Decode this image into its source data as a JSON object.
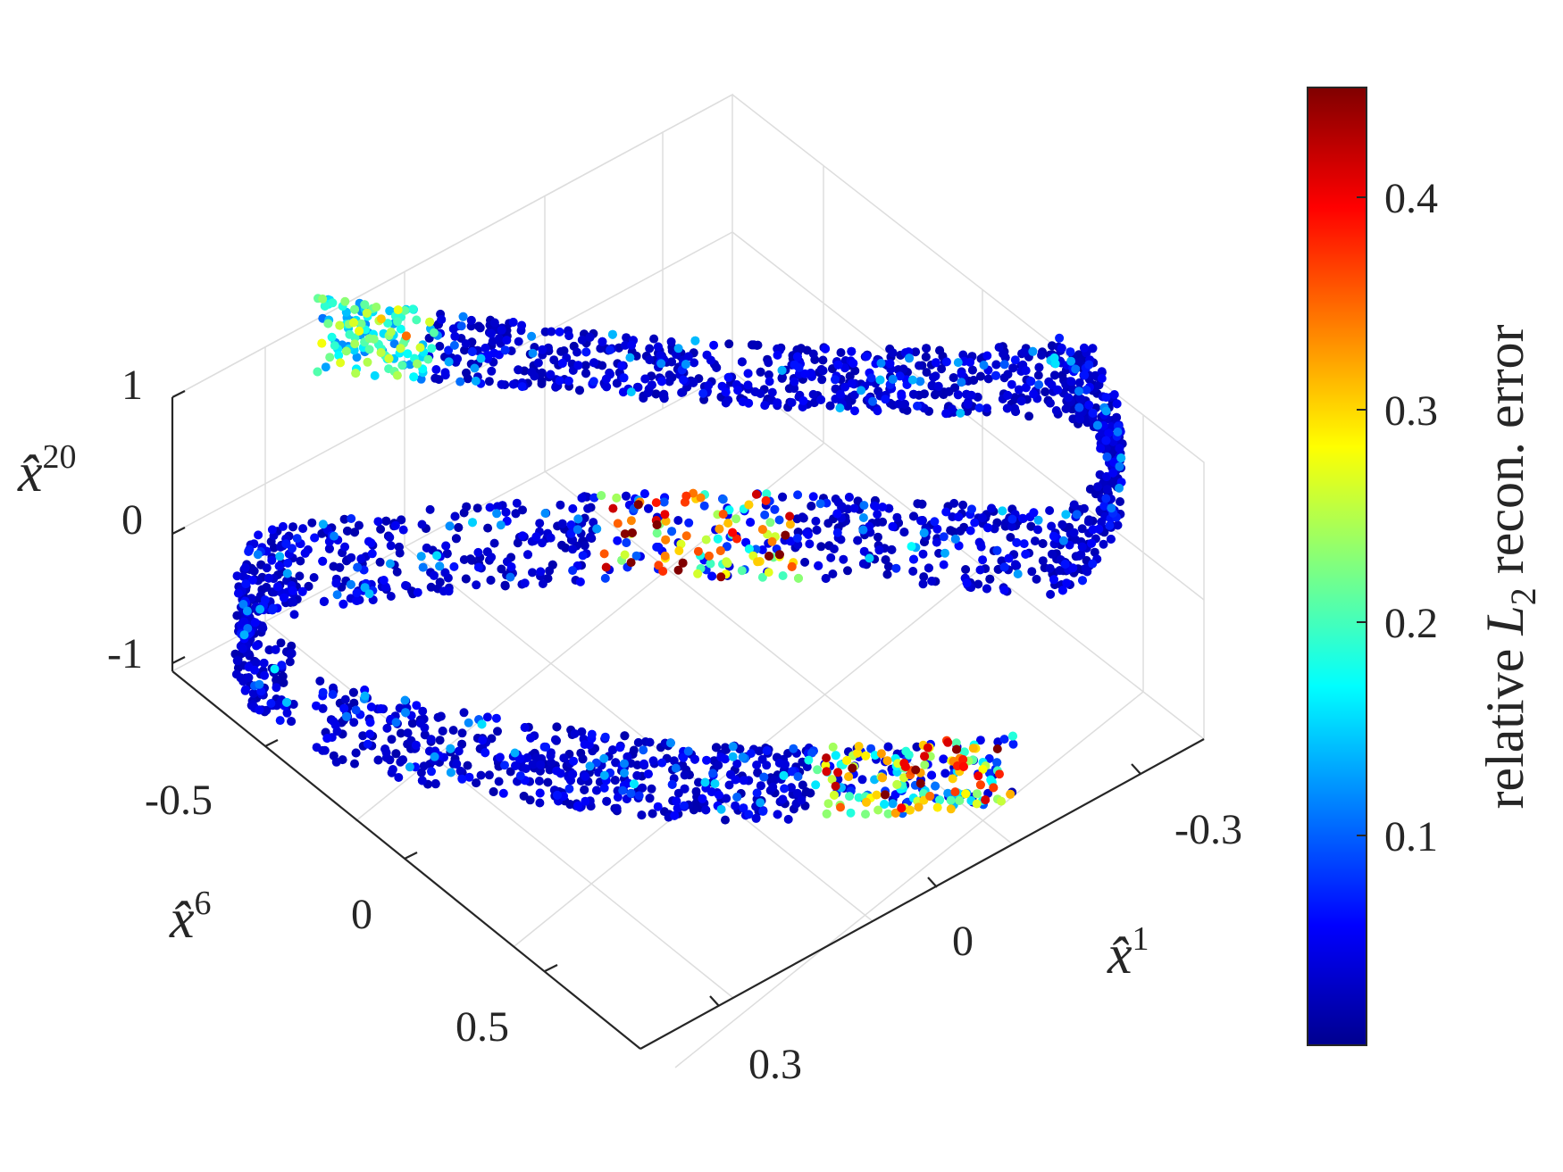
{
  "chart_data": {
    "type": "scatter",
    "subtype": "3d-scatter-colored",
    "title": "",
    "axes": {
      "x": {
        "label_base": "x̂",
        "label_sup": "1",
        "ticks": [
          "0.3",
          "0",
          "-0.3"
        ],
        "lim": [
          0.4,
          -0.4
        ]
      },
      "y": {
        "label_base": "x̂",
        "label_sup": "6",
        "ticks": [
          "-0.5",
          "0",
          "0.5"
        ],
        "lim": [
          -0.8,
          0.8
        ]
      },
      "z": {
        "label_base": "x̂",
        "label_sup": "20",
        "ticks": [
          "1",
          "0",
          "-1"
        ],
        "lim": [
          -1.1,
          1.1
        ]
      }
    },
    "grid": true,
    "colormap": "jet",
    "colorbar": {
      "ticks": [
        "0.1",
        "0.2",
        "0.3",
        "0.4"
      ],
      "range": [
        0.0,
        0.45
      ],
      "label_pre": "relative ",
      "label_var": "L",
      "label_sub": "2",
      "label_post": " recon. error"
    },
    "points_description": "approximately 4000 points lying on a helical ribbon (about 1.5 turns) in the (x1, x6, x20) space; most errors 0.0-0.1, with higher errors (0.2-0.45) clustered near the middle of the middle band and at both ends of the ribbon",
    "high_error_clusters": [
      {
        "location": "upper band, left end",
        "error_range": [
          0.15,
          0.3
        ]
      },
      {
        "location": "middle band, center",
        "error_range": [
          0.3,
          0.45
        ]
      },
      {
        "location": "lower band, right end",
        "error_range": [
          0.15,
          0.45
        ]
      }
    ]
  }
}
